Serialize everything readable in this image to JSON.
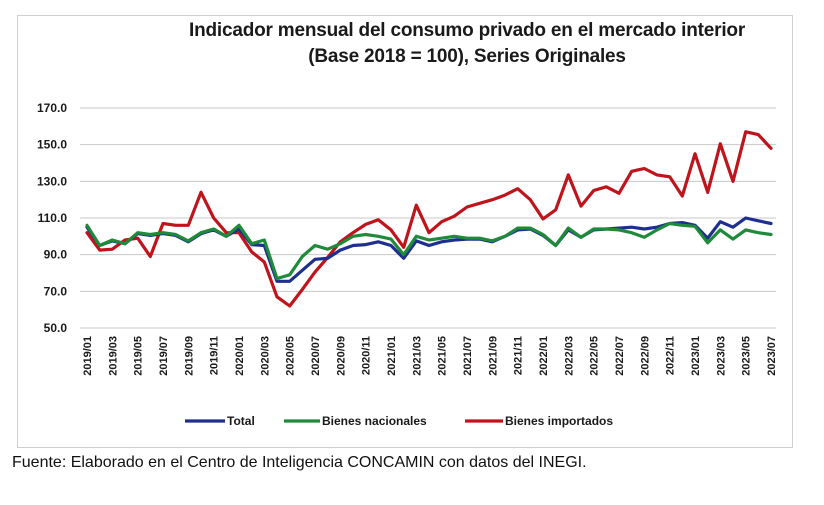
{
  "chart_data": {
    "type": "line",
    "title_line1": "Indicador mensual del consumo privado en el mercado interior",
    "title_line2": "(Base 2018 = 100), Series Originales",
    "xlabel": "",
    "ylabel": "",
    "ylim": [
      50,
      170
    ],
    "yticks": [
      "170.0",
      "150.0",
      "130.0",
      "110.0",
      "90.0",
      "70.0",
      "50.0"
    ],
    "ytick_values": [
      170,
      150,
      130,
      110,
      90,
      70,
      50
    ],
    "grid": true,
    "legend_position": "bottom",
    "x": [
      "2019/01",
      "2019/02",
      "2019/03",
      "2019/04",
      "2019/05",
      "2019/06",
      "2019/07",
      "2019/08",
      "2019/09",
      "2019/10",
      "2019/11",
      "2019/12",
      "2020/01",
      "2020/02",
      "2020/03",
      "2020/04",
      "2020/05",
      "2020/06",
      "2020/07",
      "2020/08",
      "2020/09",
      "2020/10",
      "2020/11",
      "2020/12",
      "2021/01",
      "2021/02",
      "2021/03",
      "2021/04",
      "2021/05",
      "2021/06",
      "2021/07",
      "2021/08",
      "2021/09",
      "2021/10",
      "2021/11",
      "2021/12",
      "2022/01",
      "2022/02",
      "2022/03",
      "2022/04",
      "2022/05",
      "2022/06",
      "2022/07",
      "2022/08",
      "2022/09",
      "2022/10",
      "2022/11",
      "2022/12",
      "2023/01",
      "2023/02",
      "2023/03",
      "2023/04",
      "2023/05",
      "2023/06",
      "2023/07"
    ],
    "xtick_labels": [
      "2019/01",
      "2019/03",
      "2019/05",
      "2019/07",
      "2019/09",
      "2019/11",
      "2020/01",
      "2020/03",
      "2020/05",
      "2020/07",
      "2020/09",
      "2020/11",
      "2021/01",
      "2021/03",
      "2021/05",
      "2021/07",
      "2021/09",
      "2021/11",
      "2022/01",
      "2022/03",
      "2022/05",
      "2022/07",
      "2022/09",
      "2022/11",
      "2023/01",
      "2023/03",
      "2023/05",
      "2023/07"
    ],
    "series": [
      {
        "name": "Total",
        "color": "#1f2f8f",
        "values": [
          105,
          95,
          97.5,
          96,
          101.5,
          100.5,
          101.5,
          100.5,
          97,
          101.5,
          103.5,
          100,
          104,
          95.5,
          95,
          75.5,
          75.5,
          81.5,
          87.5,
          88,
          92.5,
          95,
          95.5,
          97,
          95,
          88,
          97.5,
          95,
          97,
          98,
          98.5,
          98.5,
          97,
          100,
          103.5,
          104,
          100.5,
          95,
          103.5,
          99.5,
          103.5,
          104,
          104.5,
          105,
          104,
          105,
          107,
          107.5,
          106,
          99,
          108,
          105,
          110,
          108.5,
          107
        ]
      },
      {
        "name": "Bienes nacionales",
        "color": "#1e8a3a",
        "values": [
          106,
          95,
          98,
          96,
          102,
          101,
          102,
          101,
          97.5,
          102,
          104,
          100,
          106,
          96,
          98,
          77,
          79,
          89,
          95,
          93,
          96,
          100,
          101,
          100,
          98.5,
          90,
          100,
          98,
          99,
          100,
          99,
          99,
          97.5,
          100,
          104.5,
          104.5,
          101,
          95,
          104.5,
          99.5,
          104,
          104,
          103.5,
          102,
          99.5,
          103.5,
          107,
          106,
          105.5,
          96.5,
          103.5,
          98.5,
          103.5,
          102,
          101
        ]
      },
      {
        "name": "Bienes importados",
        "color": "#c0141c",
        "values": [
          102,
          92.5,
          93,
          98,
          99,
          89,
          107,
          106,
          106,
          124,
          110,
          102,
          102,
          91.5,
          86,
          67,
          62,
          71,
          80.5,
          88.5,
          97,
          102,
          106.5,
          109,
          103.5,
          94,
          117,
          102,
          108,
          111,
          116,
          118,
          120,
          122.5,
          126,
          120,
          109.5,
          114.5,
          133.5,
          116.5,
          125,
          127,
          123.5,
          135.5,
          137,
          133.5,
          132.5,
          122,
          145,
          124,
          150.5,
          130,
          157,
          155.5,
          148
        ]
      }
    ]
  },
  "footer": "Fuente: Elaborado en el Centro de Inteligencia CONCAMIN con datos del INEGI."
}
